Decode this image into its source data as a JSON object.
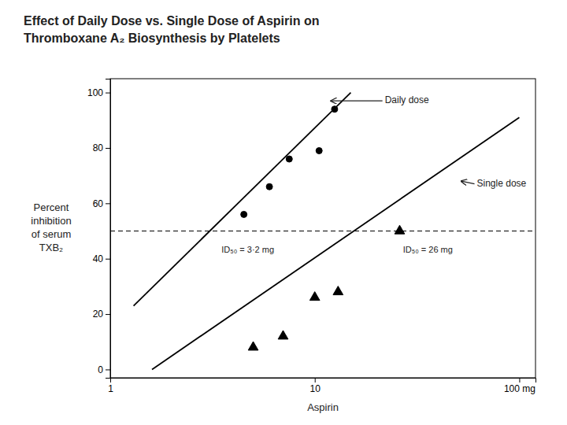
{
  "chart_data": {
    "type": "scatter",
    "title": [
      "Effect of Daily Dose vs. Single Dose of Aspirin on",
      "Thromboxane A₂ Biosynthesis by Platelets"
    ],
    "x_label": "Aspirin",
    "y_label": [
      "Percent",
      "inhibition",
      "of serum",
      "TXB₂"
    ],
    "log": "x",
    "xlim": [
      1,
      120
    ],
    "xticks": [
      1,
      10,
      {
        "value": 100,
        "label": "100 mg"
      }
    ],
    "ylim": [
      -3,
      105
    ],
    "yticks": [
      0,
      20,
      40,
      60,
      80,
      100
    ],
    "grid": false,
    "series": [
      {
        "type": "scatter",
        "marker": "circle",
        "color": "black",
        "x": [
          4.5,
          6.0,
          7.5,
          10.5,
          12.5
        ],
        "values": [
          56,
          66,
          76,
          79,
          94
        ]
      },
      {
        "type": "scatter",
        "marker": "triangle",
        "color": "black",
        "x": [
          5.0,
          7.0,
          10.0,
          13.0,
          26.0
        ],
        "values": [
          8,
          12,
          26,
          28,
          50
        ]
      },
      {
        "type": "line",
        "line_style": "solid",
        "color": "black",
        "x": [
          1.3,
          15.0
        ],
        "values": [
          23,
          100
        ]
      },
      {
        "type": "line",
        "line_style": "solid",
        "color": "black",
        "x": [
          1.6,
          100.0
        ],
        "values": [
          0,
          91
        ]
      }
    ],
    "reference_line": {
      "y": 50,
      "line_style": "dashed",
      "color": "black"
    },
    "annotations": [
      {
        "text": "Daily dose",
        "x": 12.0,
        "y": 97,
        "text_x": 22,
        "text_y": 97,
        "arrow": true
      },
      {
        "text": "Single dose",
        "x": 52,
        "y": 68,
        "text_x": 62,
        "text_y": 67,
        "arrow": true
      },
      {
        "text": "ID₅₀ = 3·2 mg",
        "x": 3.5,
        "y": 43
      },
      {
        "text": "ID₅₀ = 26 mg",
        "x": 27,
        "y": 43
      }
    ]
  }
}
